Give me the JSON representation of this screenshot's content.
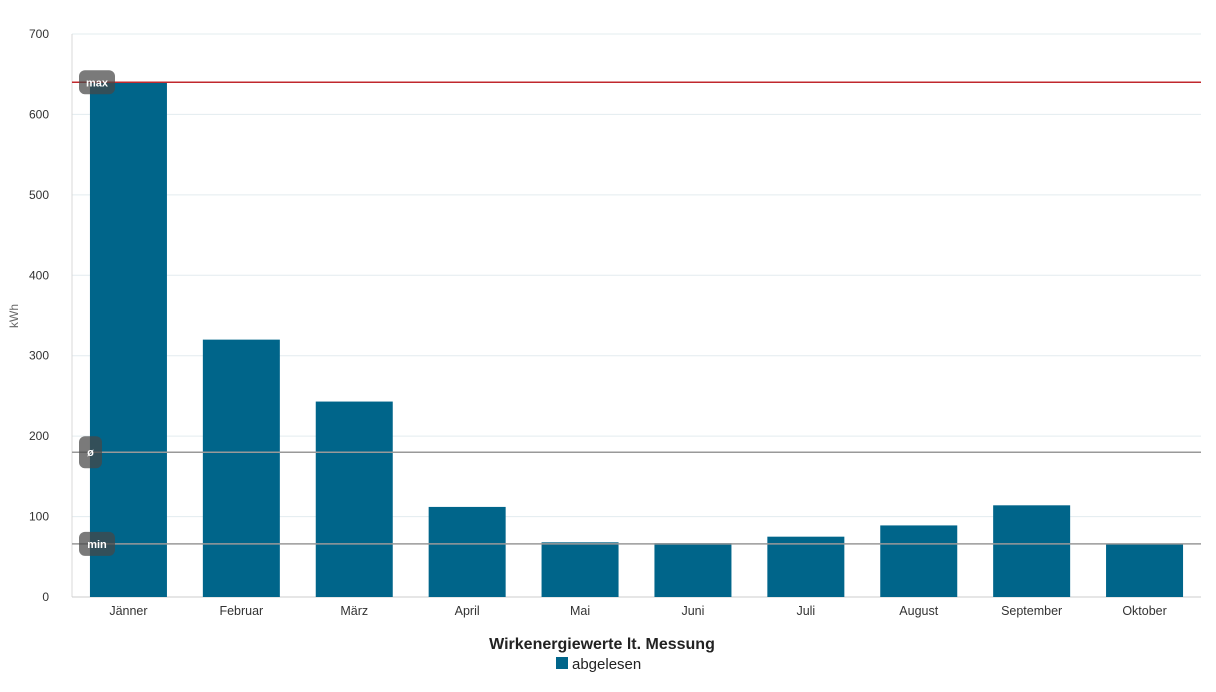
{
  "chart_data": {
    "type": "bar",
    "categories": [
      "Jänner",
      "Februar",
      "März",
      "April",
      "Mai",
      "Juni",
      "Juli",
      "August",
      "September",
      "Oktober"
    ],
    "series": [
      {
        "name": "abgelesen",
        "color": "#00658a",
        "values": [
          640,
          320,
          243,
          112,
          68,
          67,
          75,
          89,
          114,
          66
        ]
      }
    ],
    "ylabel": "kWh",
    "ylim": [
      0,
      700
    ],
    "yticks": [
      0,
      100,
      200,
      300,
      400,
      500,
      600,
      700
    ],
    "grid": true,
    "reference_lines": [
      {
        "label": "max",
        "value": 640,
        "color": "#c0282d"
      },
      {
        "label": "ø",
        "value": 180,
        "color": "#999999"
      },
      {
        "label": "min",
        "value": 66,
        "color": "#999999"
      }
    ],
    "legend_title": "Wirkenergiewerte lt. Messung",
    "legend_position": "bottom-center"
  }
}
